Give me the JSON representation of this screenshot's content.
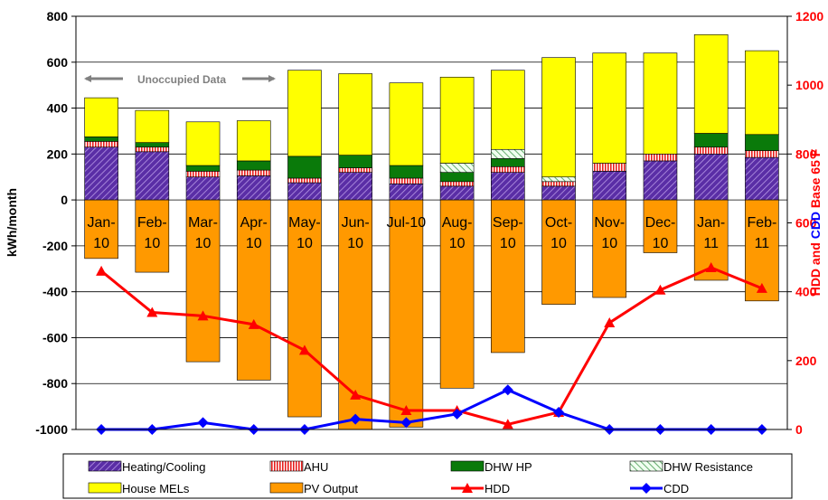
{
  "chart_data": {
    "type": "bar",
    "title": "",
    "xlabel": "",
    "ylabel": "kWh/month",
    "ylabel_right": "HDD and CDD Base 65 F",
    "ylim": [
      -1000,
      800
    ],
    "ylim_right": [
      0,
      1200
    ],
    "yticks": [
      "800",
      "600",
      "400",
      "200",
      "0",
      "-200",
      "-400",
      "-600",
      "-800",
      "-1000"
    ],
    "yticks_right": [
      "1200",
      "1000",
      "800",
      "600",
      "400",
      "200",
      "0"
    ],
    "categories": [
      "Jan-10",
      "Feb-10",
      "Mar-10",
      "Apr-10",
      "May-10",
      "Jun-10",
      "Jul-10",
      "Aug-10",
      "Sep-10",
      "Oct-10",
      "Nov-10",
      "Dec-10",
      "Jan-11",
      "Feb-11"
    ],
    "category_labels": [
      [
        "Jan-",
        "10"
      ],
      [
        "Feb-",
        "10"
      ],
      [
        "Mar-",
        "10"
      ],
      [
        "Apr-",
        "10"
      ],
      [
        "May-",
        "10"
      ],
      [
        "Jun-",
        "10"
      ],
      [
        "Jul-10",
        ""
      ],
      [
        "Aug-",
        "10"
      ],
      [
        "Sep-",
        "10"
      ],
      [
        "Oct-",
        "10"
      ],
      [
        "Nov-",
        "10"
      ],
      [
        "Dec-",
        "10"
      ],
      [
        "Jan-",
        "11"
      ],
      [
        "Feb-",
        "11"
      ]
    ],
    "series": [
      {
        "name": "Heating/Cooling",
        "axis": "left",
        "kind": "bar",
        "color": "#5a2ea6",
        "values": [
          230,
          210,
          100,
          105,
          75,
          120,
          70,
          60,
          120,
          60,
          125,
          170,
          200,
          185
        ]
      },
      {
        "name": "AHU",
        "axis": "left",
        "kind": "bar",
        "color": "#f4a0a0",
        "values": [
          25,
          20,
          25,
          25,
          20,
          20,
          25,
          20,
          25,
          20,
          35,
          30,
          30,
          30
        ]
      },
      {
        "name": "DHW HP",
        "axis": "left",
        "kind": "bar",
        "color": "#0a7a0a",
        "values": [
          20,
          20,
          25,
          40,
          95,
          55,
          55,
          40,
          35,
          0,
          0,
          0,
          60,
          70
        ]
      },
      {
        "name": "DHW Resistance",
        "axis": "left",
        "kind": "bar",
        "color": "#c8eccf",
        "values": [
          0,
          0,
          0,
          0,
          0,
          0,
          0,
          40,
          40,
          20,
          0,
          0,
          0,
          0
        ]
      },
      {
        "name": "House MELs",
        "axis": "left",
        "kind": "bar",
        "color": "#ffff00",
        "values": [
          170,
          140,
          190,
          175,
          375,
          355,
          360,
          375,
          345,
          520,
          480,
          440,
          430,
          365
        ]
      },
      {
        "name": "PV Output",
        "axis": "left",
        "kind": "bar",
        "color": "#ff9900",
        "values": [
          -255,
          -315,
          -705,
          -785,
          -945,
          -1000,
          -990,
          -820,
          -665,
          -455,
          -425,
          -230,
          -350,
          -440
        ]
      },
      {
        "name": "HDD",
        "axis": "right",
        "kind": "line",
        "color": "#ff0000",
        "values": [
          460,
          340,
          330,
          305,
          230,
          100,
          55,
          55,
          15,
          50,
          310,
          405,
          470,
          410
        ]
      },
      {
        "name": "CDD",
        "axis": "right",
        "kind": "line",
        "color": "#0000ff",
        "values": [
          0,
          0,
          20,
          0,
          0,
          30,
          20,
          45,
          115,
          50,
          0,
          0,
          0,
          0
        ]
      }
    ],
    "annotation": "Unoccupied Data",
    "grid": true,
    "legend_position": "bottom"
  }
}
